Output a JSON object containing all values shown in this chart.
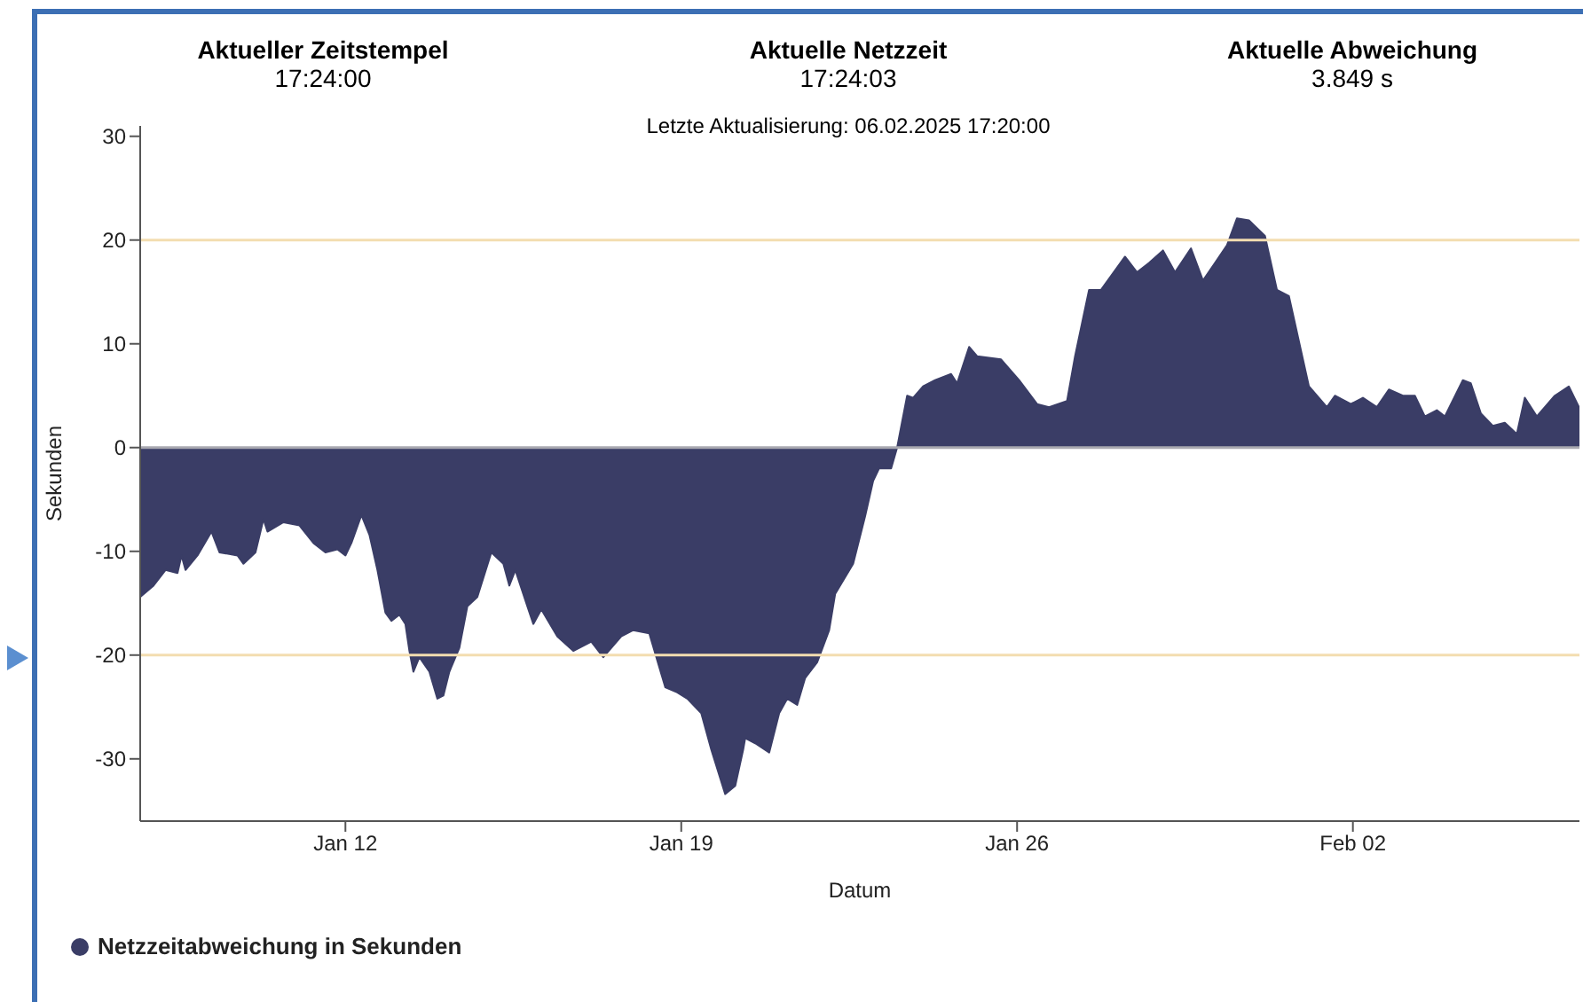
{
  "chart_data": {
    "type": "area",
    "subtitle": "Letzte Aktualisierung: 06.02.2025 17:20:00",
    "annotations": [
      "Aktueller Zeitstempel",
      "17:24:00",
      "Aktuelle Netzzeit",
      "17:24:03",
      "Aktuelle Abweichung",
      "3.849 s"
    ],
    "xlabel": "Datum",
    "ylabel": "Sekunden",
    "xlim": [
      "2025-01-07T17:20",
      "2025-02-06T17:20"
    ],
    "xticks": [
      {
        "value": "2025-01-12",
        "label": "Jan 12"
      },
      {
        "value": "2025-01-19",
        "label": "Jan 19"
      },
      {
        "value": "2025-01-26",
        "label": "Jan 26"
      },
      {
        "value": "2025-02-02",
        "label": "Feb 02"
      }
    ],
    "ylim": [
      -36,
      31
    ],
    "yticks": [
      -30,
      -20,
      -10,
      0,
      10,
      20,
      30
    ],
    "ref_lines": [
      {
        "axis": "y",
        "value": 20,
        "color": "#f3ddb0"
      },
      {
        "axis": "y",
        "value": -20,
        "color": "#f3ddb0"
      },
      {
        "axis": "y",
        "value": 0,
        "color": "#a8a8b0"
      }
    ],
    "legend": "bottom left",
    "series": [
      {
        "name": "Netzzeitabweichung in Sekunden",
        "color": "#3a3d66",
        "x": [
          "2025-01-07T17:20",
          "2025-01-08T00:00",
          "2025-01-08T06:00",
          "2025-01-08T12:00",
          "2025-01-08T14:00",
          "2025-01-08T16:00",
          "2025-01-08T22:00",
          "2025-01-09T05:00",
          "2025-01-09T09:00",
          "2025-01-09T18:00",
          "2025-01-09T21:00",
          "2025-01-10T03:00",
          "2025-01-10T07:00",
          "2025-01-10T09:00",
          "2025-01-10T17:00",
          "2025-01-11T01:00",
          "2025-01-11T08:00",
          "2025-01-11T14:00",
          "2025-01-11T20:00",
          "2025-01-12T00:00",
          "2025-01-12T03:00",
          "2025-01-12T08:00",
          "2025-01-12T12:00",
          "2025-01-12T16:00",
          "2025-01-12T20:00",
          "2025-01-12T23:00",
          "2025-01-13T03:00",
          "2025-01-13T06:00",
          "2025-01-13T08:00",
          "2025-01-13T10:00",
          "2025-01-13T13:00",
          "2025-01-13T18:00",
          "2025-01-13T22:00",
          "2025-01-14T01:00",
          "2025-01-14T04:00",
          "2025-01-14T09:00",
          "2025-01-14T13:00",
          "2025-01-14T18:00",
          "2025-01-15T01:00",
          "2025-01-15T07:00",
          "2025-01-15T10:00",
          "2025-01-15T13:00",
          "2025-01-15T19:00",
          "2025-01-15T22:00",
          "2025-01-16T02:00",
          "2025-01-16T10:00",
          "2025-01-16T18:00",
          "2025-01-17T03:00",
          "2025-01-17T09:00",
          "2025-01-17T18:00",
          "2025-01-18T00:00",
          "2025-01-18T08:00",
          "2025-01-18T12:00",
          "2025-01-18T16:00",
          "2025-01-18T22:00",
          "2025-01-19T03:00",
          "2025-01-19T10:00",
          "2025-01-19T15:00",
          "2025-01-19T22:00",
          "2025-01-20T03:00",
          "2025-01-20T07:00",
          "2025-01-20T08:00",
          "2025-01-20T13:00",
          "2025-01-20T20:00",
          "2025-01-21T01:00",
          "2025-01-21T05:00",
          "2025-01-21T10:00",
          "2025-01-21T14:00",
          "2025-01-21T20:00",
          "2025-01-22T02:00",
          "2025-01-22T05:00",
          "2025-01-22T14:00",
          "2025-01-22T20:00",
          "2025-01-23T00:00",
          "2025-01-23T03:00",
          "2025-01-23T09:00",
          "2025-01-23T12:00",
          "2025-01-23T17:00",
          "2025-01-23T20:00",
          "2025-01-24T01:00",
          "2025-01-24T07:00",
          "2025-01-24T15:00",
          "2025-01-24T18:00",
          "2025-01-25T00:00",
          "2025-01-25T04:00",
          "2025-01-25T16:00",
          "2025-01-26T01:00",
          "2025-01-26T10:00",
          "2025-01-26T16:00",
          "2025-01-27T01:00",
          "2025-01-27T05:00",
          "2025-01-27T12:00",
          "2025-01-27T18:00",
          "2025-01-28T06:00",
          "2025-01-28T12:00",
          "2025-01-28T18:00",
          "2025-01-29T01:00",
          "2025-01-29T07:00",
          "2025-01-29T15:00",
          "2025-01-29T21:00",
          "2025-01-30T03:00",
          "2025-01-30T09:00",
          "2025-01-30T14:00",
          "2025-01-30T20:00",
          "2025-01-31T04:00",
          "2025-01-31T10:00",
          "2025-01-31T16:00",
          "2025-02-01T02:00",
          "2025-02-01T11:00",
          "2025-02-01T15:00",
          "2025-02-01T23:00",
          "2025-02-02T05:00",
          "2025-02-02T12:00",
          "2025-02-02T18:00",
          "2025-02-03T01:00",
          "2025-02-03T07:00",
          "2025-02-03T12:00",
          "2025-02-03T18:00",
          "2025-02-03T22:00",
          "2025-02-04T07:00",
          "2025-02-04T11:00",
          "2025-02-04T16:00",
          "2025-02-04T22:00",
          "2025-02-05T04:00",
          "2025-02-05T10:00",
          "2025-02-05T14:00",
          "2025-02-05T20:00",
          "2025-02-06T05:00",
          "2025-02-06T12:00",
          "2025-02-06T17:20"
        ],
        "values": [
          -14.4,
          -13.3,
          -11.8,
          -12.1,
          -10.4,
          -11.8,
          -10.4,
          -8.1,
          -10.1,
          -10.4,
          -11.2,
          -10.1,
          -6.9,
          -8.1,
          -7.2,
          -7.5,
          -9.2,
          -10.1,
          -9.8,
          -10.4,
          -9.2,
          -6.5,
          -8.4,
          -11.8,
          -15.9,
          -16.7,
          -16.1,
          -17.0,
          -19.6,
          -21.6,
          -20.2,
          -21.6,
          -24.2,
          -23.9,
          -21.6,
          -19.3,
          -15.3,
          -14.4,
          -10.1,
          -11.2,
          -13.3,
          -11.8,
          -15.3,
          -17.0,
          -15.6,
          -18.2,
          -19.6,
          -18.7,
          -20.2,
          -18.2,
          -17.6,
          -17.9,
          -20.5,
          -23.1,
          -23.6,
          -24.2,
          -25.6,
          -29.1,
          -33.4,
          -32.6,
          -29.1,
          -28.0,
          -28.5,
          -29.4,
          -25.6,
          -24.2,
          -24.8,
          -22.2,
          -20.7,
          -17.6,
          -14.1,
          -11.2,
          -6.6,
          -3.2,
          -2.0,
          -2.0,
          0,
          5.0,
          4.8,
          5.9,
          6.5,
          7.1,
          6.2,
          9.7,
          8.8,
          8.5,
          6.5,
          4.2,
          3.9,
          4.5,
          8.8,
          15.2,
          15.2,
          18.4,
          16.9,
          17.8,
          19.0,
          16.9,
          19.2,
          16.1,
          17.8,
          19.5,
          22.1,
          21.9,
          20.4,
          15.2,
          14.6,
          5.9,
          3.9,
          5.0,
          4.2,
          4.8,
          3.9,
          5.6,
          5.0,
          5.0,
          3.0,
          3.6,
          3.0,
          6.5,
          6.2,
          3.3,
          2.1,
          2.4,
          1.3,
          4.8,
          3.0,
          5.0,
          5.9,
          3.8
        ]
      }
    ]
  }
}
